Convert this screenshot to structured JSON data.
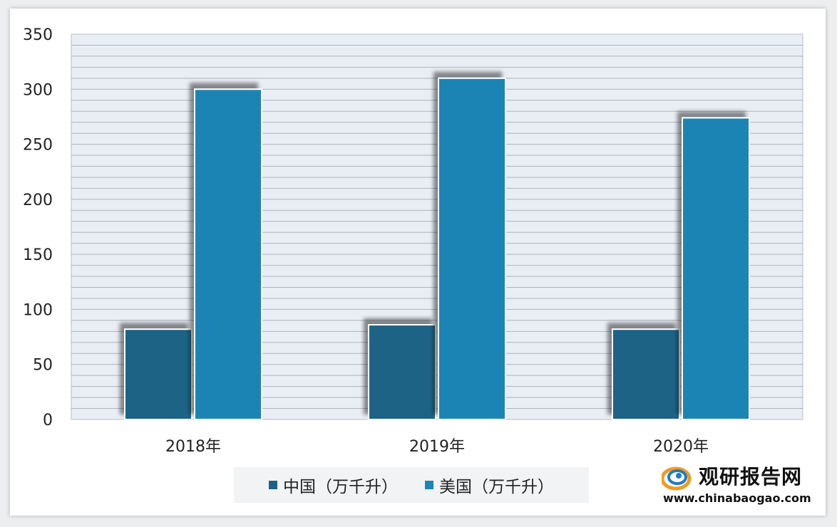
{
  "chart_data": {
    "type": "bar",
    "categories": [
      "2018年",
      "2019年",
      "2020年"
    ],
    "series": [
      {
        "name": "中国（万千升）",
        "values": [
          82,
          86,
          82
        ],
        "color": "#1b6386"
      },
      {
        "name": "美国（万千升）",
        "values": [
          300,
          310,
          274
        ],
        "color": "#1f84b5"
      }
    ],
    "ylim": [
      0,
      350
    ],
    "yticks": [
      0,
      50,
      100,
      150,
      200,
      250,
      300,
      350
    ],
    "grid": true,
    "legend_position": "bottom"
  },
  "watermark": {
    "title": "观研报告网",
    "url": "www.chinabaogao.com"
  }
}
